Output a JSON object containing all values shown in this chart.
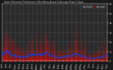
{
  "title": "Solar PV/Inverter Performance West Array Actual & Average Power Output",
  "bg_color": "#1a1a1a",
  "plot_bg_color": "#2a2a2a",
  "grid_color": "#ffffff",
  "text_color": "#cccccc",
  "red_color": "#ff0000",
  "blue_color": "#0044ff",
  "orange_color": "#ff6600",
  "legend_actual": "Actual",
  "legend_average": "Average",
  "ylim": [
    0,
    6000
  ],
  "ytick_labels": [
    "0",
    "1k",
    "2k",
    "3k",
    "4k",
    "5k",
    "6k"
  ],
  "ytick_vals": [
    0,
    1000,
    2000,
    3000,
    4000,
    5000,
    6000
  ],
  "num_points": 500,
  "num_days": 70,
  "seed": 7
}
